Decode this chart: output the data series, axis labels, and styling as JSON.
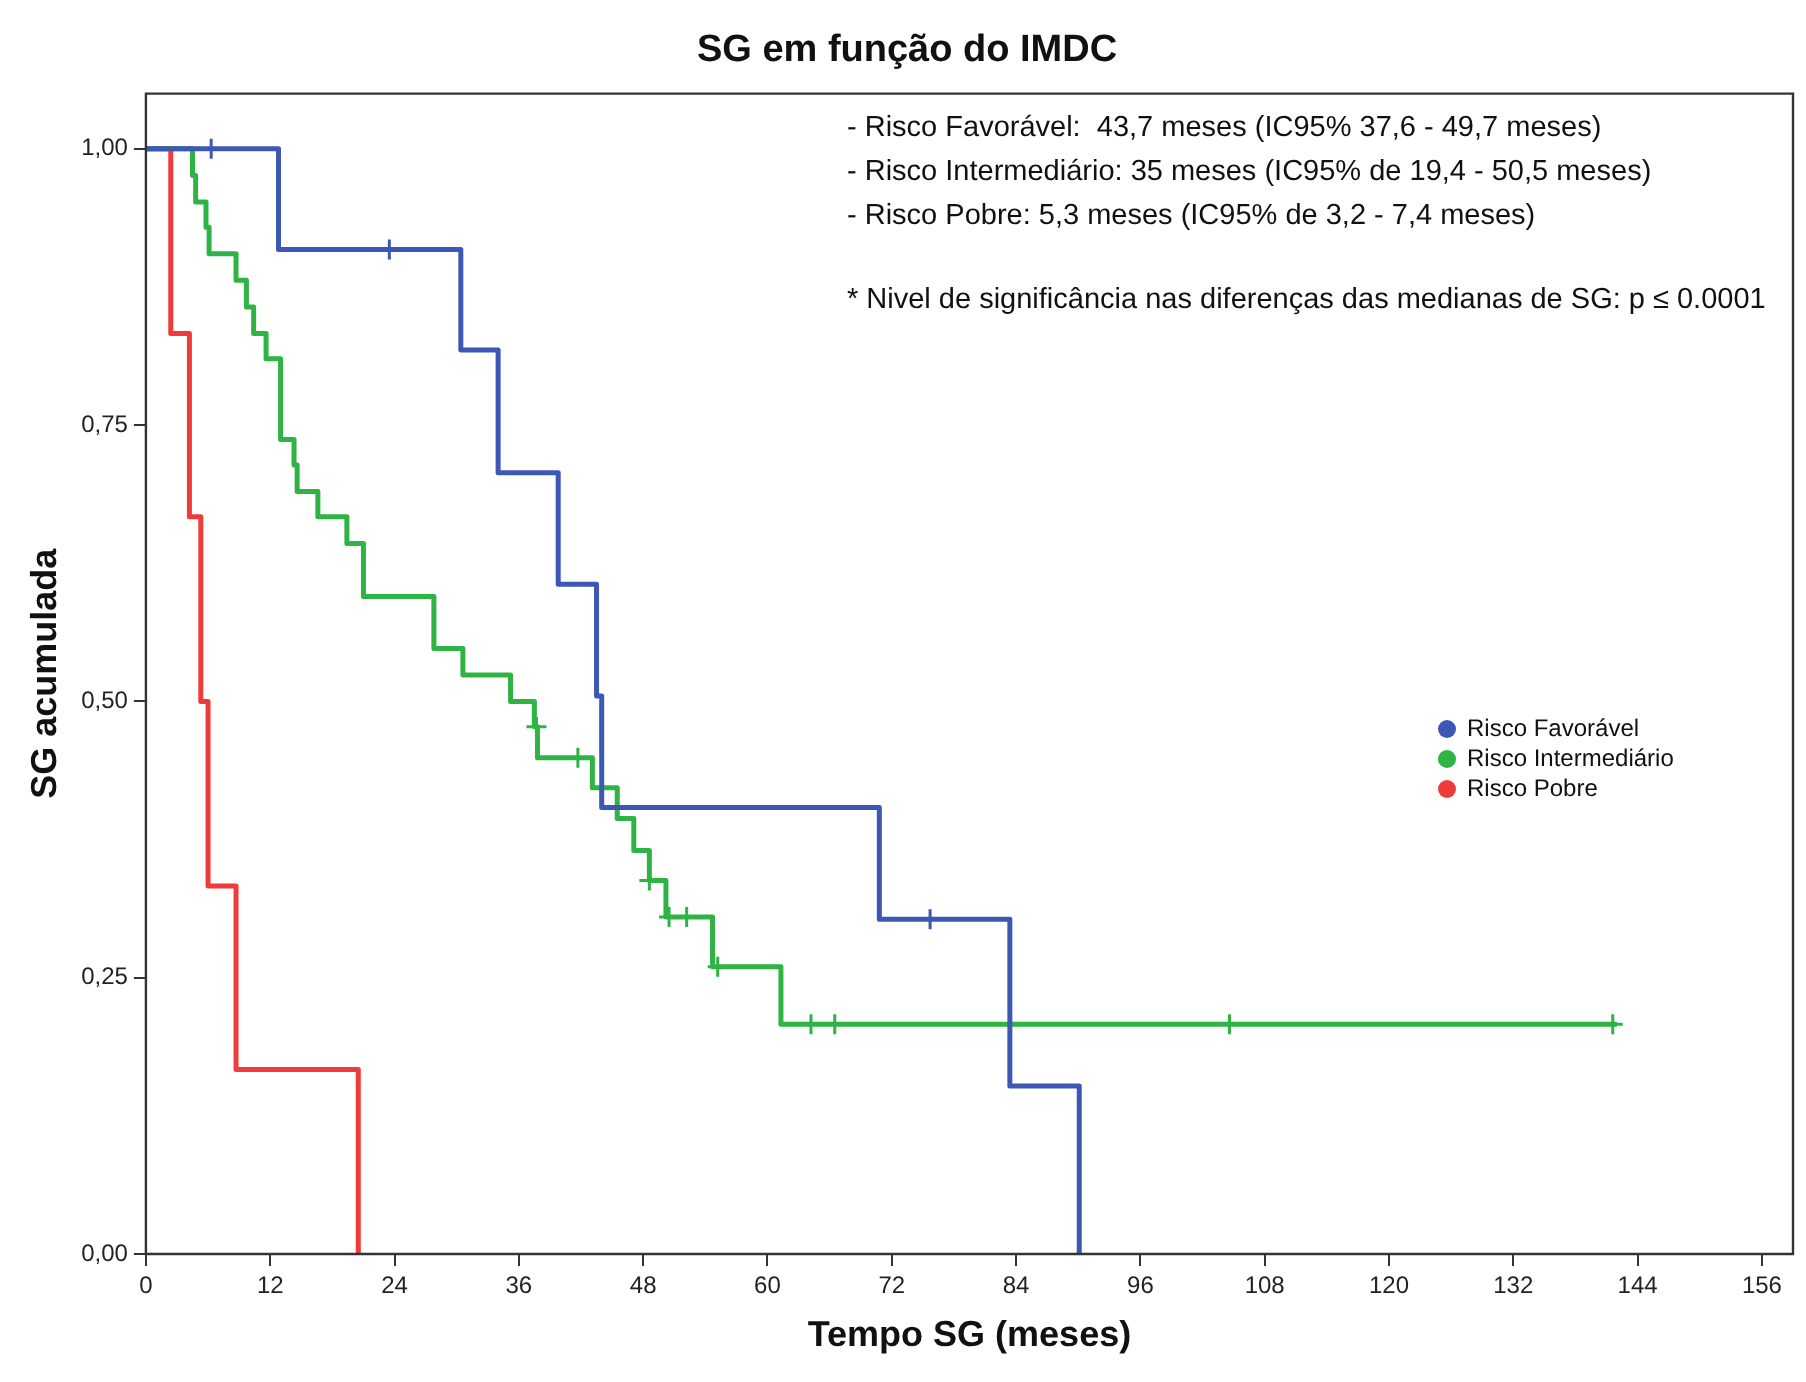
{
  "chart_data": {
    "type": "step",
    "title": "SG em função do IMDC",
    "xlabel": "Tempo SG (meses)",
    "ylabel": "SG acumulada",
    "xlim": [
      0,
      159
    ],
    "xticks": [
      0,
      12,
      24,
      36,
      48,
      60,
      72,
      84,
      96,
      108,
      120,
      132,
      144,
      156
    ],
    "ylim": [
      0,
      1.05
    ],
    "yticks": [
      {
        "value": 0,
        "label": "0,00"
      },
      {
        "value": 0.25,
        "label": "0,25"
      },
      {
        "value": 0.5,
        "label": "0,50"
      },
      {
        "value": 0.75,
        "label": "0,75"
      },
      {
        "value": 1,
        "label": "1,00"
      }
    ],
    "grid": false,
    "legend": "right",
    "marker": "none",
    "line_style": "solid",
    "annotations": [
      "- Risco Favorável:  43,7 meses (IC95% 37,6 - 49,7 meses)",
      "- Risco Intermediário: 35 meses (IC95% de 19,4 - 50,5 meses)",
      "- Risco Pobre: 5,3 meses (IC95% de 3,2 - 7,4 meses)",
      "* Nivel de significância nas diferenças das medianas de SG: p ≤ 0.0001"
    ],
    "series": [
      {
        "name": "Risco Favorável",
        "color": "#3d57b5",
        "x": [
          0,
          12.8,
          30.4,
          34,
          39.8,
          43.5,
          44,
          70.8,
          83.4,
          90.1
        ],
        "values": [
          1,
          0.909,
          0.818,
          0.707,
          0.606,
          0.505,
          0.404,
          0.303,
          0.152,
          0
        ]
      },
      {
        "name": "Risco Intermediário",
        "color": "#2fb344",
        "x": [
          0,
          4.5,
          4.8,
          5.8,
          6.1,
          8.7,
          9.7,
          10.4,
          11.6,
          13,
          14.3,
          14.6,
          16.6,
          19.4,
          21,
          27.8,
          30.6,
          35.2,
          37.5,
          37.8,
          43.1,
          45.5,
          47.1,
          48.6,
          50.2,
          54.7,
          61.3,
          142
        ],
        "values": [
          1,
          0.976,
          0.952,
          0.929,
          0.905,
          0.881,
          0.857,
          0.833,
          0.81,
          0.737,
          0.714,
          0.69,
          0.667,
          0.643,
          0.595,
          0.548,
          0.524,
          0.5,
          0.477,
          0.449,
          0.422,
          0.394,
          0.365,
          0.338,
          0.305,
          0.26,
          0.208,
          0.208
        ]
      },
      {
        "name": "Risco Pobre",
        "color": "#ee3b3b",
        "x": [
          0,
          2.4,
          4.2,
          5.3,
          6,
          8.7,
          20.5
        ],
        "values": [
          1,
          0.833,
          0.667,
          0.5,
          0.333,
          0.167,
          0
        ]
      },
      {
        "type": "scatter",
        "marker": "cross",
        "color": "#3d57b5",
        "x": [
          6.3,
          23.5,
          75.7
        ],
        "values": [
          1,
          0.909,
          0.303
        ]
      },
      {
        "type": "scatter",
        "marker": "cross",
        "color": "#2fb344",
        "x": [
          37.7,
          41.7,
          48.6,
          50.5,
          52.2,
          55.2,
          64.2,
          66.5,
          104.6,
          141.6
        ],
        "values": [
          0.477,
          0.449,
          0.338,
          0.305,
          0.305,
          0.26,
          0.208,
          0.208,
          0.208,
          0.208
        ]
      }
    ]
  }
}
